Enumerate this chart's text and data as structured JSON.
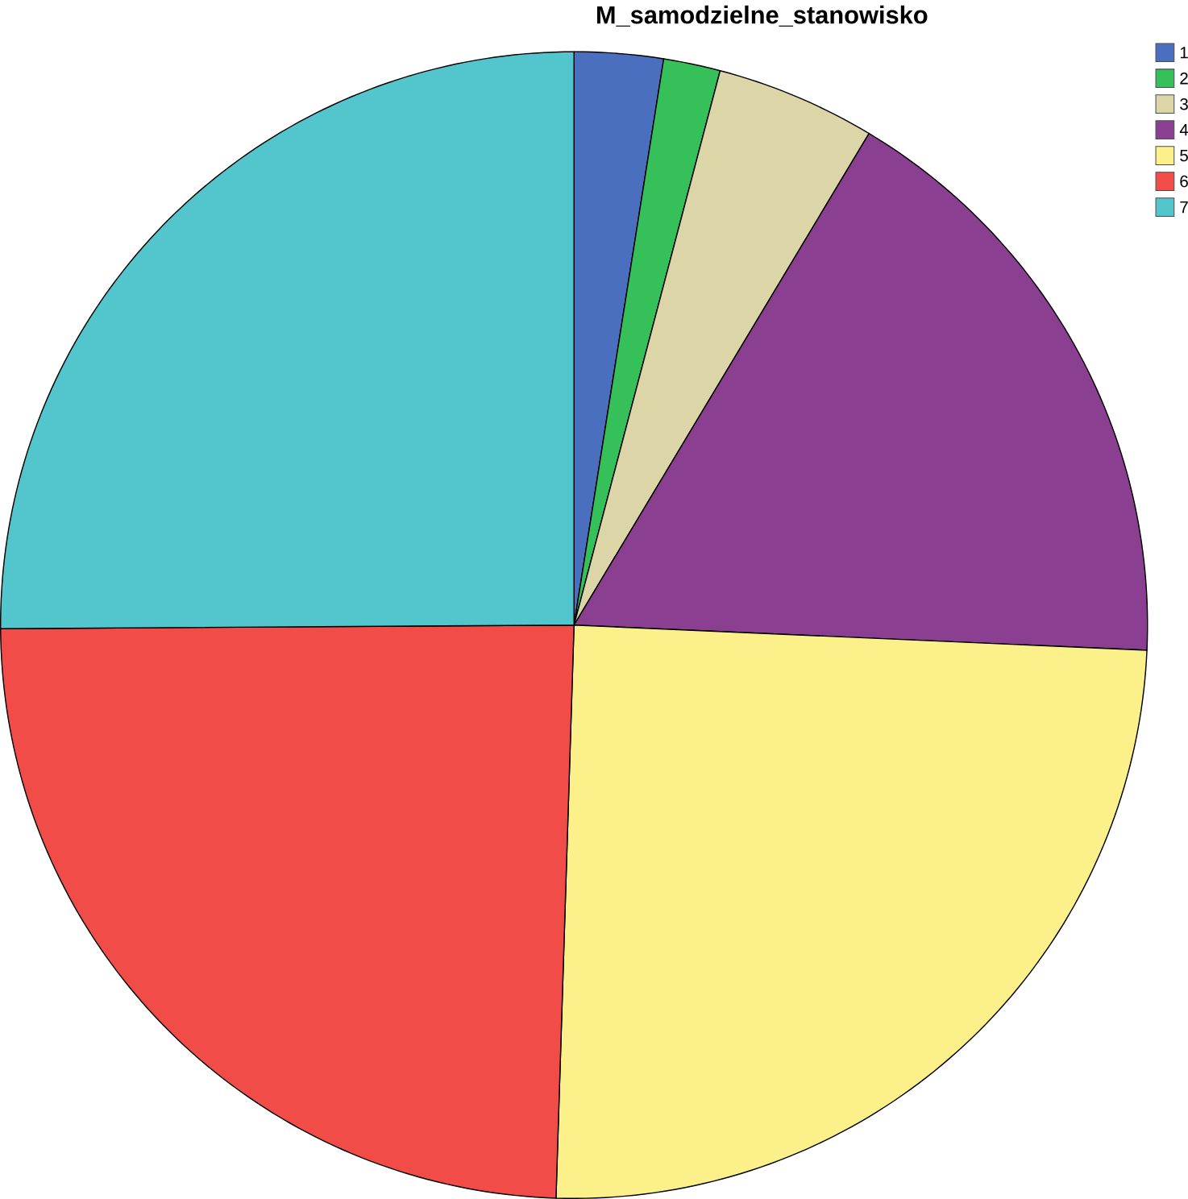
{
  "chart_data": {
    "type": "pie",
    "title": "M_samodzielne_stanowisko",
    "categories": [
      "1",
      "2",
      "3",
      "4",
      "5",
      "6",
      "7"
    ],
    "values": [
      2.5,
      1.6,
      4.5,
      17.1,
      24.8,
      24.4,
      25.1
    ],
    "colors": [
      "#4a6fbf",
      "#35c05a",
      "#dbd5a8",
      "#8b3f91",
      "#fbf08a",
      "#f24c48",
      "#53c5cc"
    ],
    "legend": "top right"
  }
}
